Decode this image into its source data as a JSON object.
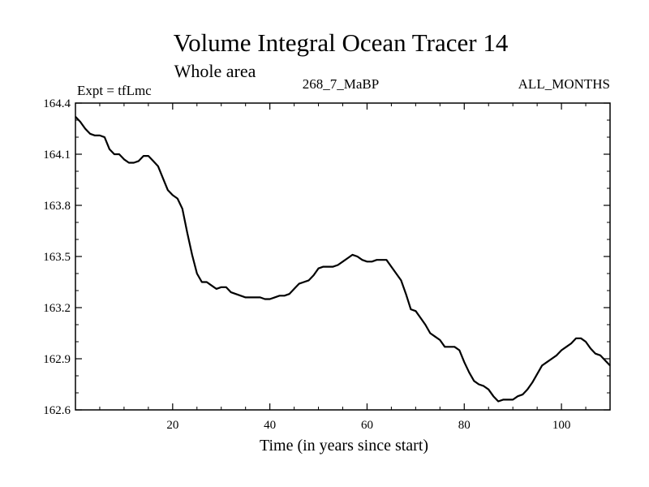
{
  "chart_data": {
    "type": "line",
    "title": "Volume Integral Ocean Tracer 14",
    "subtitle": "Whole area",
    "left_label": "Expt = tfLmc",
    "center_label": "268_7_MaBP",
    "right_label": "ALL_MONTHS",
    "xlabel": "Time (in years since start)",
    "ylabel": "",
    "xlim": [
      0,
      110
    ],
    "ylim": [
      162.6,
      164.4
    ],
    "x_ticks": [
      20,
      40,
      60,
      80,
      100
    ],
    "y_ticks": [
      162.6,
      162.9,
      163.2,
      163.5,
      163.8,
      164.1,
      164.4
    ],
    "x_tick_labels": [
      "20",
      "40",
      "60",
      "80",
      "100"
    ],
    "y_tick_labels": [
      "162.6",
      "162.9",
      "163.2",
      "163.5",
      "163.8",
      "164.1",
      "164.4"
    ],
    "grid": false,
    "line_color": "#000000",
    "series": [
      {
        "x": [
          0,
          1,
          2,
          3,
          4,
          5,
          6,
          7,
          8,
          9,
          10,
          11,
          12,
          13,
          14,
          15,
          16,
          17,
          18,
          19,
          20,
          21,
          22,
          23,
          24,
          25,
          26,
          27,
          28,
          29,
          30,
          31,
          32,
          33,
          34,
          35,
          36,
          37,
          38,
          39,
          40,
          41,
          42,
          43,
          44,
          45,
          46,
          47,
          48,
          49,
          50,
          51,
          52,
          53,
          54,
          55,
          56,
          57,
          58,
          59,
          60,
          61,
          62,
          63,
          64,
          65,
          66,
          67,
          68,
          69,
          70,
          71,
          72,
          73,
          74,
          75,
          76,
          77,
          78,
          79,
          80,
          81,
          82,
          83,
          84,
          85,
          86,
          87,
          88,
          89,
          90,
          91,
          92,
          93,
          94,
          95,
          96,
          97,
          98,
          99,
          100,
          101,
          102,
          103,
          104,
          105,
          106,
          107,
          108,
          109,
          110
        ],
        "y": [
          164.32,
          164.29,
          164.25,
          164.22,
          164.21,
          164.21,
          164.2,
          164.13,
          164.1,
          164.1,
          164.07,
          164.05,
          164.05,
          164.06,
          164.09,
          164.09,
          164.06,
          164.03,
          163.96,
          163.89,
          163.86,
          163.84,
          163.78,
          163.64,
          163.51,
          163.4,
          163.35,
          163.35,
          163.33,
          163.31,
          163.32,
          163.32,
          163.29,
          163.28,
          163.27,
          163.26,
          163.26,
          163.26,
          163.26,
          163.25,
          163.25,
          163.26,
          163.27,
          163.27,
          163.28,
          163.31,
          163.34,
          163.35,
          163.36,
          163.39,
          163.43,
          163.44,
          163.44,
          163.44,
          163.45,
          163.47,
          163.49,
          163.51,
          163.5,
          163.48,
          163.47,
          163.47,
          163.48,
          163.48,
          163.48,
          163.44,
          163.4,
          163.36,
          163.28,
          163.19,
          163.18,
          163.14,
          163.1,
          163.05,
          163.03,
          163.01,
          162.97,
          162.97,
          162.97,
          162.95,
          162.88,
          162.82,
          162.77,
          162.75,
          162.74,
          162.72,
          162.68,
          162.65,
          162.66,
          162.66,
          162.66,
          162.68,
          162.69,
          162.72,
          162.76,
          162.81,
          162.86,
          162.88,
          162.9,
          162.92,
          162.95,
          162.97,
          162.99,
          163.02,
          163.02,
          163.0,
          162.96,
          162.93,
          162.92,
          162.89,
          162.86
        ]
      }
    ]
  }
}
